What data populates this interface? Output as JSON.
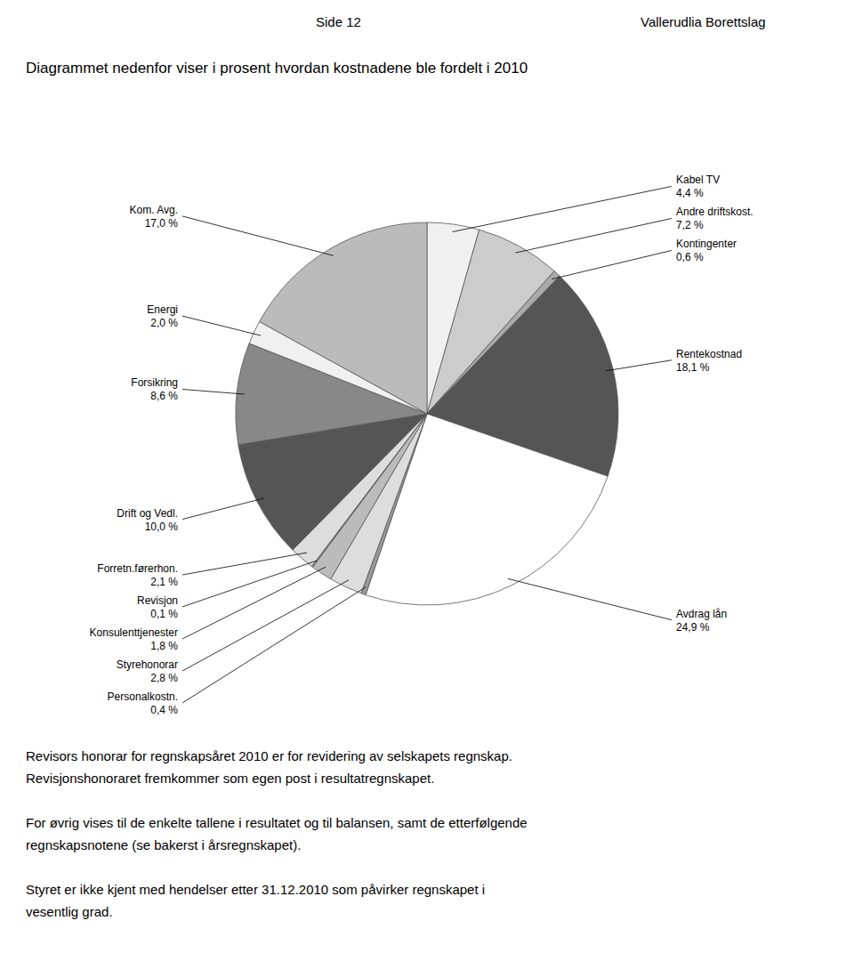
{
  "chart_data": {
    "type": "pie",
    "title": "Diagrammet  nedenfor viser i prosent hvordan kostnadene ble fordelt i 2010",
    "categories": [
      "Kabel TV",
      "Andre driftskost.",
      "Kontingenter",
      "Rentekostnad",
      "Avdrag lån",
      "Personalkostn.",
      "Styrehonorar",
      "Konsulenttjenester",
      "Revisjon",
      "Forretn.førerhon.",
      "Drift og Vedl.",
      "Forsikring",
      "Energi",
      "Kom. Avg."
    ],
    "values": [
      4.4,
      7.2,
      0.6,
      18.1,
      24.9,
      0.4,
      2.8,
      1.8,
      0.1,
      2.1,
      10.0,
      8.6,
      2.0,
      17.0
    ],
    "value_labels": [
      "4,4 %",
      "7,2 %",
      "0,6 %",
      "18,1 %",
      "24,9 %",
      "0,4 %",
      "2,8 %",
      "1,8 %",
      "0,1 %",
      "2,1 %",
      "10,0 %",
      "8,6 %",
      "2,0 %",
      "17,0 %"
    ],
    "colors": [
      "#f0f0f0",
      "#cccccc",
      "#aaaaaa",
      "#555555",
      "#ffffff",
      "#999999",
      "#dddddd",
      "#bbbbbb",
      "#999999",
      "#dddddd",
      "#555555",
      "#888888",
      "#f0f0f0",
      "#bbbbbb"
    ],
    "data_labels": true,
    "annotations": [
      "Side 12",
      "Vallerudlia Borettslag",
      "Revisors honorar for regnskapsåret 2010 er for revidering av selskapets regnskap.\nRevisjonshonoraret fremkommer som egen post i resultatregnskapet.",
      "For øvrig vises til de enkelte tallene i resultatet og til balansen, samt de etterfølgende\nregnskapsnotene (se bakerst i årsregnskapet).",
      "Styret er ikke kjent med hendelser etter 31.12.2010 som påvirker regnskapet i\nvesentlig grad."
    ]
  }
}
